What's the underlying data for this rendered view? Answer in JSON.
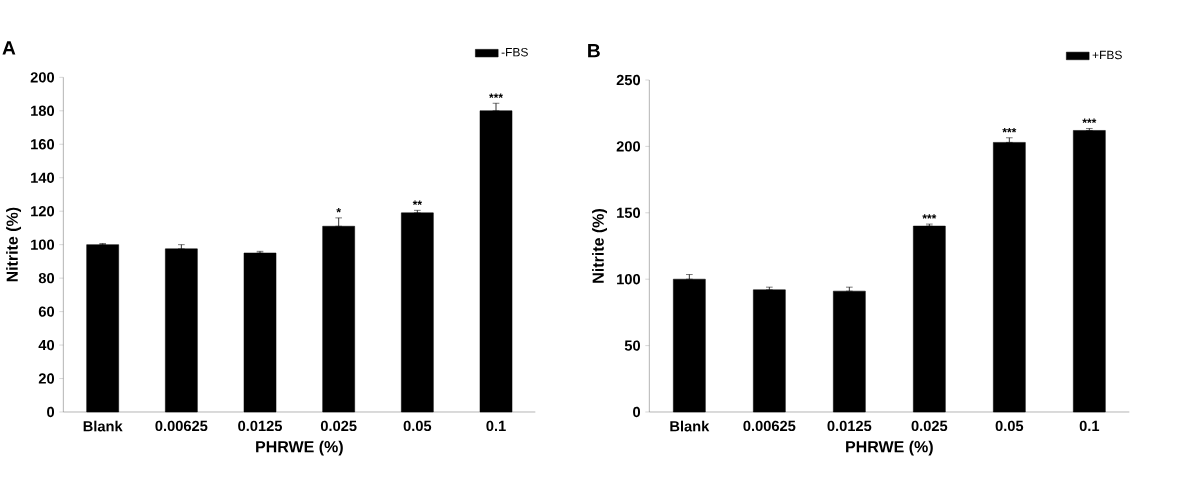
{
  "chart_data": [
    {
      "type": "bar",
      "title": "A",
      "xlabel": "PHRWE (%)",
      "ylabel": "Nitrite (%)",
      "categories": [
        "Blank",
        "0.00625",
        "0.0125",
        "0.025",
        "0.05",
        "0.1"
      ],
      "series": [
        {
          "name": "-FBS",
          "color": "#000000",
          "values": [
            100,
            97.5,
            95,
            111,
            119,
            180
          ],
          "errors": [
            [
              100,
              100.7
            ],
            [
              97.5,
              100
            ],
            [
              95,
              96
            ],
            [
              111,
              116
            ],
            [
              119,
              120.5
            ],
            [
              180,
              184.5
            ]
          ]
        }
      ],
      "ylim": [
        0,
        200
      ],
      "yticks": [
        0,
        20,
        40,
        60,
        80,
        100,
        120,
        140,
        160,
        180,
        200
      ],
      "grid": false,
      "legend": "top right",
      "annotations": [
        {
          "text": "*",
          "x": "0.025",
          "y": 116
        },
        {
          "text": "**",
          "x": "0.05",
          "y": 120.5
        },
        {
          "text": "***",
          "x": "0.1",
          "y": 184.5
        }
      ]
    },
    {
      "type": "bar",
      "title": "B",
      "xlabel": "PHRWE (%)",
      "ylabel": "Nitrite (%)",
      "categories": [
        "Blank",
        "0.00625",
        "0.0125",
        "0.025",
        "0.05",
        "0.1"
      ],
      "series": [
        {
          "name": "+FBS",
          "color": "#000000",
          "values": [
            100,
            92,
            91,
            140,
            203,
            212
          ],
          "errors": [
            [
              100,
              103.5
            ],
            [
              92,
              94
            ],
            [
              91,
              94
            ],
            [
              140,
              141.5
            ],
            [
              203,
              206.5
            ],
            [
              212,
              213.5
            ]
          ]
        }
      ],
      "ylim": [
        0,
        250
      ],
      "yticks": [
        0,
        50,
        100,
        150,
        200,
        250
      ],
      "grid": false,
      "legend": "top right",
      "annotations": [
        {
          "text": "***",
          "x": "0.025",
          "y": 141.5
        },
        {
          "text": "***",
          "x": "0.05",
          "y": 206.5
        },
        {
          "text": "***",
          "x": "0.1",
          "y": 213.5
        }
      ]
    }
  ]
}
